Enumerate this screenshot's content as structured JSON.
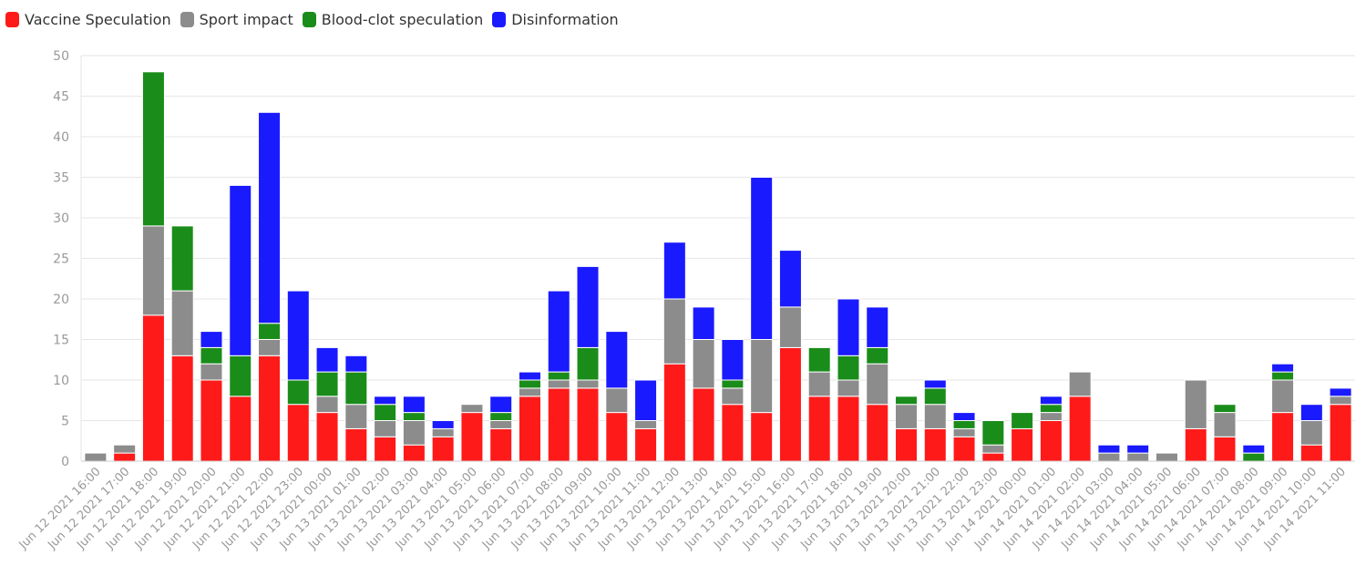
{
  "chart_data": {
    "type": "bar",
    "stacked": true,
    "categories": [
      "Jun 12 2021 16:00",
      "Jun 12 2021 17:00",
      "Jun 12 2021 18:00",
      "Jun 12 2021 19:00",
      "Jun 12 2021 20:00",
      "Jun 12 2021 21:00",
      "Jun 12 2021 22:00",
      "Jun 12 2021 23:00",
      "Jun 13 2021 00:00",
      "Jun 13 2021 01:00",
      "Jun 13 2021 02:00",
      "Jun 13 2021 03:00",
      "Jun 13 2021 04:00",
      "Jun 13 2021 05:00",
      "Jun 13 2021 06:00",
      "Jun 13 2021 07:00",
      "Jun 13 2021 08:00",
      "Jun 13 2021 09:00",
      "Jun 13 2021 10:00",
      "Jun 13 2021 11:00",
      "Jun 13 2021 12:00",
      "Jun 13 2021 13:00",
      "Jun 13 2021 14:00",
      "Jun 13 2021 15:00",
      "Jun 13 2021 16:00",
      "Jun 13 2021 17:00",
      "Jun 13 2021 18:00",
      "Jun 13 2021 19:00",
      "Jun 13 2021 20:00",
      "Jun 13 2021 21:00",
      "Jun 13 2021 22:00",
      "Jun 13 2021 23:00",
      "Jun 14 2021 00:00",
      "Jun 14 2021 01:00",
      "Jun 14 2021 02:00",
      "Jun 14 2021 03:00",
      "Jun 14 2021 04:00",
      "Jun 14 2021 05:00",
      "Jun 14 2021 06:00",
      "Jun 14 2021 07:00",
      "Jun 14 2021 08:00",
      "Jun 14 2021 09:00",
      "Jun 14 2021 10:00",
      "Jun 14 2021 11:00"
    ],
    "series": [
      {
        "name": "Vaccine Speculation",
        "color": "#ff1a1a",
        "values": [
          0,
          1,
          18,
          13,
          10,
          8,
          13,
          7,
          6,
          4,
          3,
          2,
          3,
          6,
          4,
          8,
          9,
          9,
          6,
          4,
          12,
          9,
          7,
          6,
          14,
          8,
          8,
          7,
          4,
          4,
          3,
          1,
          4,
          5,
          8,
          0,
          0,
          0,
          4,
          3,
          0,
          6,
          2,
          7
        ]
      },
      {
        "name": "Sport impact",
        "color": "#8c8c8c",
        "values": [
          1,
          1,
          11,
          8,
          2,
          0,
          2,
          0,
          2,
          3,
          2,
          3,
          1,
          1,
          1,
          1,
          1,
          1,
          3,
          1,
          8,
          6,
          2,
          9,
          5,
          3,
          2,
          5,
          3,
          3,
          1,
          1,
          0,
          1,
          3,
          1,
          1,
          1,
          6,
          3,
          0,
          4,
          3,
          1
        ]
      },
      {
        "name": "Blood-clot speculation",
        "color": "#1a8c1a",
        "values": [
          0,
          0,
          19,
          8,
          2,
          5,
          2,
          3,
          3,
          4,
          2,
          1,
          0,
          0,
          1,
          1,
          1,
          4,
          0,
          0,
          0,
          0,
          1,
          0,
          0,
          3,
          3,
          2,
          1,
          2,
          1,
          3,
          2,
          1,
          0,
          0,
          0,
          0,
          0,
          1,
          1,
          1,
          0,
          0
        ]
      },
      {
        "name": "Disinformation",
        "color": "#1a1aff",
        "values": [
          0,
          0,
          0,
          0,
          2,
          21,
          26,
          11,
          3,
          2,
          1,
          2,
          1,
          0,
          2,
          1,
          10,
          10,
          7,
          5,
          7,
          4,
          5,
          20,
          7,
          0,
          7,
          5,
          0,
          1,
          1,
          0,
          0,
          1,
          0,
          1,
          1,
          0,
          0,
          0,
          1,
          1,
          2,
          1
        ]
      }
    ],
    "ylim": [
      0,
      50
    ],
    "yticks": [
      0,
      5,
      10,
      15,
      20,
      25,
      30,
      35,
      40,
      45,
      50
    ],
    "grid": true,
    "legend_position": "top-left",
    "title": "",
    "xlabel": "",
    "ylabel": ""
  }
}
